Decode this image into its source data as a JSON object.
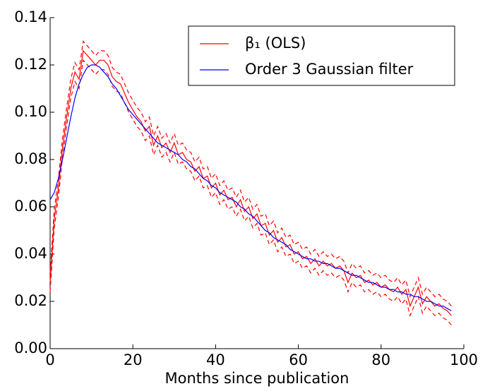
{
  "chart_data": {
    "type": "line",
    "xlabel": "Months since publication",
    "x": [
      0,
      1,
      2,
      3,
      4,
      5,
      6,
      7,
      8,
      9,
      10,
      11,
      12,
      13,
      14,
      15,
      16,
      17,
      18,
      19,
      20,
      21,
      22,
      23,
      24,
      25,
      26,
      27,
      28,
      29,
      30,
      31,
      32,
      33,
      34,
      35,
      36,
      37,
      38,
      39,
      40,
      41,
      42,
      43,
      44,
      45,
      46,
      47,
      48,
      49,
      50,
      51,
      52,
      53,
      54,
      55,
      56,
      57,
      58,
      59,
      60,
      61,
      62,
      63,
      64,
      65,
      66,
      67,
      68,
      69,
      70,
      71,
      72,
      73,
      74,
      75,
      76,
      77,
      78,
      79,
      80,
      81,
      82,
      83,
      84,
      85,
      86,
      87,
      88,
      89,
      90,
      91,
      92,
      93,
      94,
      95,
      96,
      97
    ],
    "xlim": [
      0,
      100
    ],
    "xticks": [
      0,
      20,
      40,
      60,
      80,
      100
    ],
    "ylim": [
      0,
      0.14
    ],
    "yticks": [
      {
        "value": 0,
        "label": "0.00"
      },
      0.02,
      0.04,
      0.06,
      0.08,
      {
        "value": 0.1,
        "label": "0.10"
      },
      0.12,
      0.14
    ],
    "legend": "upper right",
    "series": [
      {
        "color": "#ff0000",
        "linestyle": "dashed",
        "values": [
          0.032,
          0.059,
          0.072,
          0.089,
          0.102,
          0.114,
          0.121,
          0.118,
          0.13,
          0.128,
          0.126,
          0.124,
          0.126,
          0.126,
          0.124,
          0.119,
          0.117,
          0.116,
          0.112,
          0.108,
          0.105,
          0.102,
          0.1,
          0.096,
          0.098,
          0.09,
          0.094,
          0.089,
          0.091,
          0.087,
          0.091,
          0.086,
          0.087,
          0.084,
          0.083,
          0.079,
          0.081,
          0.076,
          0.077,
          0.072,
          0.074,
          0.069,
          0.071,
          0.067,
          0.068,
          0.064,
          0.067,
          0.062,
          0.064,
          0.059,
          0.061,
          0.056,
          0.057,
          0.052,
          0.054,
          0.049,
          0.051,
          0.047,
          0.048,
          0.044,
          0.045,
          0.042,
          0.043,
          0.04,
          0.042,
          0.039,
          0.041,
          0.039,
          0.04,
          0.038,
          0.039,
          0.037,
          0.032,
          0.036,
          0.034,
          0.035,
          0.032,
          0.033,
          0.031,
          0.032,
          0.03,
          0.031,
          0.029,
          0.028,
          0.03,
          0.027,
          0.029,
          0.022,
          0.026,
          0.03,
          0.023,
          0.026,
          0.024,
          0.022,
          0.023,
          0.021,
          0.02,
          0.018
        ]
      },
      {
        "color": "#ff0000",
        "linestyle": "dashed",
        "values": [
          0.024,
          0.051,
          0.064,
          0.081,
          0.094,
          0.106,
          0.113,
          0.11,
          0.122,
          0.12,
          0.118,
          0.116,
          0.118,
          0.118,
          0.116,
          0.111,
          0.109,
          0.108,
          0.104,
          0.1,
          0.097,
          0.094,
          0.092,
          0.088,
          0.09,
          0.082,
          0.086,
          0.081,
          0.083,
          0.079,
          0.083,
          0.078,
          0.079,
          0.076,
          0.075,
          0.071,
          0.073,
          0.068,
          0.069,
          0.064,
          0.066,
          0.061,
          0.063,
          0.059,
          0.06,
          0.056,
          0.059,
          0.054,
          0.056,
          0.051,
          0.053,
          0.048,
          0.049,
          0.044,
          0.046,
          0.041,
          0.043,
          0.039,
          0.04,
          0.036,
          0.037,
          0.034,
          0.035,
          0.032,
          0.034,
          0.031,
          0.033,
          0.031,
          0.032,
          0.03,
          0.031,
          0.029,
          0.024,
          0.028,
          0.026,
          0.027,
          0.024,
          0.025,
          0.023,
          0.024,
          0.022,
          0.023,
          0.021,
          0.02,
          0.022,
          0.019,
          0.021,
          0.014,
          0.018,
          0.022,
          0.015,
          0.018,
          0.016,
          0.014,
          0.015,
          0.013,
          0.012,
          0.01
        ]
      },
      {
        "name": "β₁ (OLS)",
        "color": "#ff0000",
        "linestyle": "solid",
        "values": [
          0.028,
          0.055,
          0.068,
          0.085,
          0.098,
          0.11,
          0.117,
          0.114,
          0.126,
          0.124,
          0.122,
          0.12,
          0.122,
          0.122,
          0.12,
          0.115,
          0.113,
          0.112,
          0.108,
          0.104,
          0.101,
          0.098,
          0.096,
          0.092,
          0.094,
          0.086,
          0.09,
          0.085,
          0.087,
          0.083,
          0.087,
          0.082,
          0.083,
          0.08,
          0.079,
          0.075,
          0.077,
          0.072,
          0.073,
          0.068,
          0.07,
          0.065,
          0.067,
          0.063,
          0.064,
          0.06,
          0.063,
          0.058,
          0.06,
          0.055,
          0.057,
          0.052,
          0.053,
          0.048,
          0.05,
          0.045,
          0.047,
          0.043,
          0.044,
          0.04,
          0.041,
          0.038,
          0.039,
          0.036,
          0.038,
          0.035,
          0.037,
          0.035,
          0.036,
          0.034,
          0.035,
          0.033,
          0.028,
          0.032,
          0.03,
          0.031,
          0.028,
          0.029,
          0.027,
          0.028,
          0.026,
          0.027,
          0.025,
          0.024,
          0.026,
          0.023,
          0.025,
          0.018,
          0.022,
          0.026,
          0.019,
          0.022,
          0.02,
          0.018,
          0.019,
          0.017,
          0.016,
          0.014
        ]
      },
      {
        "name": "Order 3 Gaussian filter",
        "color": "#0000ff",
        "linestyle": "solid",
        "values": [
          0.063,
          0.066,
          0.072,
          0.08,
          0.089,
          0.098,
          0.106,
          0.112,
          0.116,
          0.119,
          0.12,
          0.12,
          0.119,
          0.117,
          0.115,
          0.112,
          0.11,
          0.107,
          0.104,
          0.101,
          0.099,
          0.097,
          0.095,
          0.093,
          0.091,
          0.089,
          0.087,
          0.086,
          0.085,
          0.084,
          0.083,
          0.082,
          0.08,
          0.079,
          0.077,
          0.076,
          0.074,
          0.072,
          0.071,
          0.069,
          0.068,
          0.066,
          0.065,
          0.064,
          0.063,
          0.062,
          0.06,
          0.059,
          0.057,
          0.056,
          0.054,
          0.052,
          0.05,
          0.049,
          0.047,
          0.046,
          0.045,
          0.044,
          0.042,
          0.041,
          0.04,
          0.039,
          0.038,
          0.038,
          0.037,
          0.037,
          0.036,
          0.036,
          0.035,
          0.034,
          0.034,
          0.033,
          0.032,
          0.031,
          0.031,
          0.03,
          0.029,
          0.028,
          0.028,
          0.027,
          0.026,
          0.026,
          0.025,
          0.025,
          0.024,
          0.024,
          0.023,
          0.023,
          0.022,
          0.022,
          0.021,
          0.02,
          0.02,
          0.019,
          0.018,
          0.018,
          0.017,
          0.016
        ]
      }
    ]
  }
}
